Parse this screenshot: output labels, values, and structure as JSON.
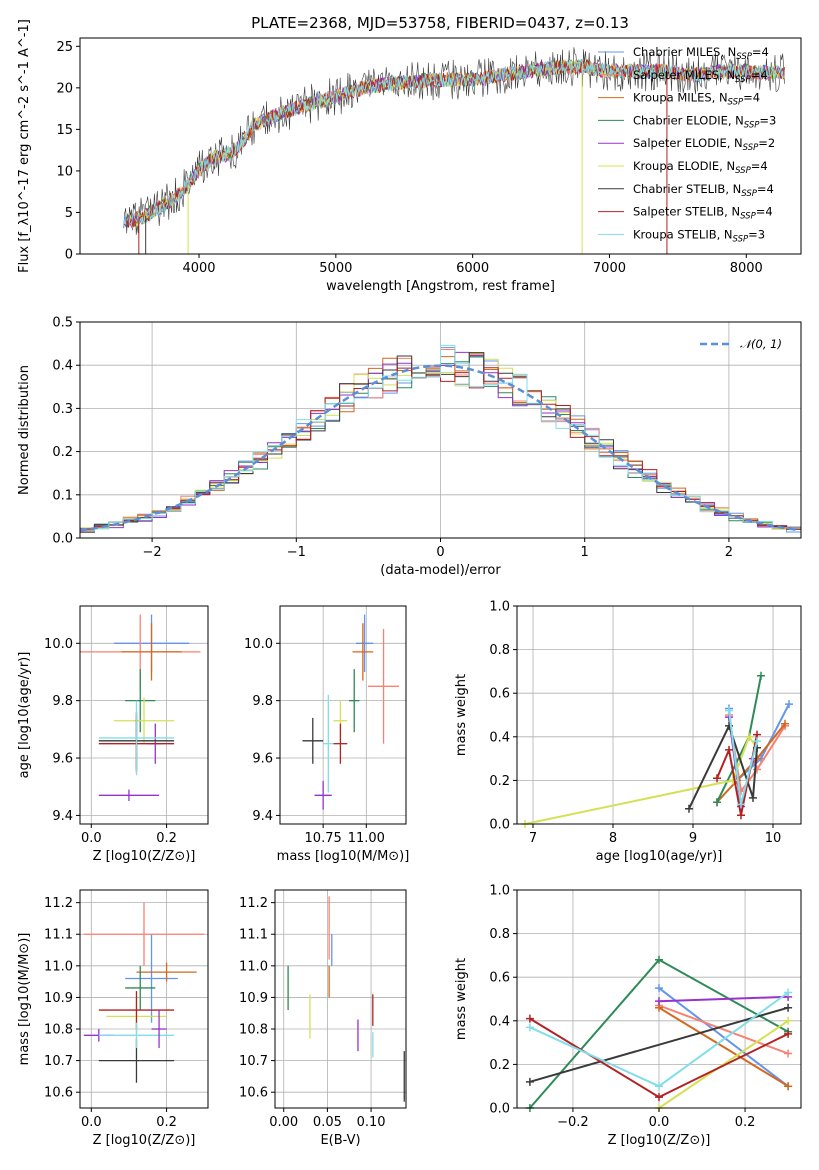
{
  "figure": {
    "title": "PLATE=2368, MJD=53758, FIBERID=0437, z=0.13"
  },
  "models": [
    {
      "name": "Chabrier MILES, N_SSP=4",
      "color": "#6495ED"
    },
    {
      "name": "Salpeter MILES, N_SSP=4",
      "color": "#FA8072"
    },
    {
      "name": "Kroupa MILES, N_SSP=4",
      "color": "#D2691E"
    },
    {
      "name": "Chabrier ELODIE, N_SSP=3",
      "color": "#2E8B57"
    },
    {
      "name": "Salpeter ELODIE, N_SSP=2",
      "color": "#9932CC"
    },
    {
      "name": "Kroupa ELODIE, N_SSP=4",
      "color": "#D4E157"
    },
    {
      "name": "Chabrier STELIB, N_SSP=4",
      "color": "#3a3a3a"
    },
    {
      "name": "Salpeter STELIB, N_SSP=4",
      "color": "#B22222"
    },
    {
      "name": "Kroupa STELIB, N_SSP=3",
      "color": "#80DEEA"
    }
  ],
  "chart_data": [
    {
      "id": "spectrum",
      "type": "line",
      "title": "PLATE=2368, MJD=53758, FIBERID=0437, z=0.13",
      "xlabel": "wavelength [Angstrom, rest frame]",
      "ylabel": "Flux [f_λ10^-17 erg cm^-2 s^-1 A^-1]",
      "xlim": [
        3130,
        8400
      ],
      "ylim": [
        0,
        26
      ],
      "xticks": [
        4000,
        5000,
        6000,
        7000,
        8000
      ],
      "yticks": [
        0,
        5,
        10,
        15,
        20,
        25
      ],
      "grid": false,
      "legend": "upper right",
      "continuum": {
        "x": [
          3500,
          3600,
          3700,
          3800,
          3900,
          4000,
          4100,
          4200,
          4300,
          4400,
          4600,
          4800,
          5000,
          5200,
          5400,
          5600,
          5800,
          6000,
          6200,
          6400,
          6600,
          6800,
          7000,
          7200,
          7400,
          7600,
          7800,
          8000,
          8200
        ],
        "y": [
          4,
          4.5,
          5.5,
          6.5,
          8,
          10,
          11.5,
          12,
          13,
          15.5,
          17,
          18,
          19,
          20,
          20.5,
          20.8,
          21,
          21,
          21.5,
          22,
          22.5,
          22.5,
          22,
          22,
          22,
          21.5,
          22,
          22,
          21.8
        ]
      }
    },
    {
      "id": "residuals",
      "type": "line",
      "xlabel": "(data-model)/error",
      "ylabel": "Normed distribution",
      "xlim": [
        -2.5,
        2.5
      ],
      "ylim": [
        0,
        0.5
      ],
      "xticks": [
        -2,
        -1,
        0,
        1,
        2
      ],
      "yticks": [
        0.0,
        0.1,
        0.2,
        0.3,
        0.4,
        0.5
      ],
      "grid": true,
      "legend": "upper right",
      "reference": {
        "name": "𝒩(0, 1)",
        "color": "#5B8FD9",
        "mean": 0,
        "sigma": 1,
        "peak": 0.399
      }
    },
    {
      "id": "age-vs-Z",
      "type": "scatter",
      "xlabel": "Z [log10(Z/Z⊙)]",
      "ylabel": "age [log10(age/yr)]",
      "xlim": [
        -0.03,
        0.31
      ],
      "ylim": [
        9.37,
        10.13
      ],
      "xticks": [
        0.0,
        0.2
      ],
      "yticks": [
        9.4,
        9.6,
        9.8,
        10.0
      ],
      "grid": true,
      "points": [
        {
          "model": 0,
          "x": 0.16,
          "xerr": 0.1,
          "y": 10.0,
          "yerr": 0.1
        },
        {
          "model": 1,
          "x": 0.13,
          "xerr": 0.16,
          "y": 9.97,
          "yerr": 0.13
        },
        {
          "model": 2,
          "x": 0.16,
          "xerr": 0.08,
          "y": 9.97,
          "yerr": 0.1
        },
        {
          "model": 3,
          "x": 0.13,
          "xerr": 0.04,
          "y": 9.8,
          "yerr": 0.11
        },
        {
          "model": 4,
          "x": 0.17,
          "xerr": 0.02,
          "y": 9.65,
          "yerr": 0.07
        },
        {
          "model": 5,
          "x": 0.14,
          "xerr": 0.08,
          "y": 9.73,
          "yerr": 0.08
        },
        {
          "model": 6,
          "x": 0.12,
          "xerr": 0.1,
          "y": 9.66,
          "yerr": 0.1
        },
        {
          "model": 7,
          "x": 0.12,
          "xerr": 0.1,
          "y": 9.65,
          "yerr": 0.1
        },
        {
          "model": 8,
          "x": 0.12,
          "xerr": 0.1,
          "y": 9.67,
          "yerr": 0.13
        },
        {
          "model": 4,
          "x": 0.1,
          "xerr": 0.08,
          "y": 9.47,
          "yerr": 0.02
        }
      ]
    },
    {
      "id": "age-vs-mass",
      "type": "scatter",
      "xlabel": "mass [log10(M/M⊙)]",
      "ylabel": "",
      "xlim": [
        10.5,
        11.23
      ],
      "ylim": [
        9.37,
        10.13
      ],
      "xticks": [
        10.75,
        11.0
      ],
      "yticks": [
        9.4,
        9.6,
        9.8,
        10.0
      ],
      "grid": true,
      "points": [
        {
          "model": 0,
          "x": 10.99,
          "xerr": 0.05,
          "y": 10.0,
          "yerr": 0.1
        },
        {
          "model": 1,
          "x": 11.1,
          "xerr": 0.09,
          "y": 9.85,
          "yerr": 0.2
        },
        {
          "model": 2,
          "x": 10.98,
          "xerr": 0.06,
          "y": 9.97,
          "yerr": 0.1
        },
        {
          "model": 3,
          "x": 10.93,
          "xerr": 0.03,
          "y": 9.8,
          "yerr": 0.11
        },
        {
          "model": 4,
          "x": 10.75,
          "xerr": 0.05,
          "y": 9.47,
          "yerr": 0.05
        },
        {
          "model": 5,
          "x": 10.85,
          "xerr": 0.04,
          "y": 9.73,
          "yerr": 0.07
        },
        {
          "model": 6,
          "x": 10.69,
          "xerr": 0.06,
          "y": 9.66,
          "yerr": 0.08
        },
        {
          "model": 7,
          "x": 10.85,
          "xerr": 0.04,
          "y": 9.65,
          "yerr": 0.07
        },
        {
          "model": 8,
          "x": 10.78,
          "xerr": 0.03,
          "y": 9.65,
          "yerr": 0.17
        }
      ]
    },
    {
      "id": "weight-vs-age",
      "type": "line",
      "xlabel": "age [log10(age/yr)]",
      "ylabel": "mass weight",
      "xlim": [
        6.8,
        10.35
      ],
      "ylim": [
        0,
        1.0
      ],
      "xticks": [
        7,
        8,
        9,
        10
      ],
      "yticks": [
        0.0,
        0.2,
        0.4,
        0.6,
        0.8,
        1.0
      ],
      "grid": true,
      "series": [
        {
          "model": 0,
          "x": [
            9.45,
            9.55,
            9.85,
            10.2
          ],
          "y": [
            0.53,
            0.2,
            0.3,
            0.55
          ]
        },
        {
          "model": 1,
          "x": [
            9.45,
            9.6,
            9.8,
            10.15
          ],
          "y": [
            0.5,
            0.15,
            0.25,
            0.45
          ]
        },
        {
          "model": 2,
          "x": [
            9.3,
            9.55,
            9.8,
            10.15
          ],
          "y": [
            0.1,
            0.2,
            0.3,
            0.46
          ]
        },
        {
          "model": 3,
          "x": [
            9.3,
            9.7,
            9.85
          ],
          "y": [
            0.1,
            0.4,
            0.68
          ]
        },
        {
          "model": 4,
          "x": [
            9.45,
            9.6,
            9.75
          ],
          "y": [
            0.49,
            0.08,
            0.3
          ]
        },
        {
          "model": 5,
          "x": [
            6.9,
            9.5,
            9.7,
            9.8
          ],
          "y": [
            0.0,
            0.2,
            0.4,
            0.35
          ]
        },
        {
          "model": 6,
          "x": [
            8.95,
            9.45,
            9.75,
            9.8
          ],
          "y": [
            0.07,
            0.45,
            0.12,
            0.35
          ]
        },
        {
          "model": 7,
          "x": [
            9.3,
            9.45,
            9.6,
            9.8
          ],
          "y": [
            0.21,
            0.34,
            0.04,
            0.41
          ]
        },
        {
          "model": 8,
          "x": [
            9.45,
            9.6,
            9.8
          ],
          "y": [
            0.52,
            0.09,
            0.38
          ]
        }
      ]
    },
    {
      "id": "mass-vs-Z",
      "type": "scatter",
      "xlabel": "Z [log10(Z/Z⊙)]",
      "ylabel": "mass [log10(M/M⊙)]",
      "xlim": [
        -0.03,
        0.31
      ],
      "ylim": [
        10.55,
        11.24
      ],
      "xticks": [
        0.0,
        0.2
      ],
      "yticks": [
        10.6,
        10.7,
        10.8,
        10.9,
        11.0,
        11.1,
        11.2
      ],
      "grid": true,
      "points": [
        {
          "model": 0,
          "x": 0.16,
          "xerr": 0.07,
          "y": 10.96,
          "yerr": 0.14
        },
        {
          "model": 1,
          "x": 0.14,
          "xerr": 0.16,
          "y": 11.1,
          "yerr": 0.1
        },
        {
          "model": 2,
          "x": 0.2,
          "xerr": 0.08,
          "y": 10.98,
          "yerr": 0.03
        },
        {
          "model": 3,
          "x": 0.13,
          "xerr": 0.04,
          "y": 10.93,
          "yerr": 0.07
        },
        {
          "model": 4,
          "x": 0.02,
          "xerr": 0.04,
          "y": 10.78,
          "yerr": 0.02
        },
        {
          "model": 5,
          "x": 0.12,
          "xerr": 0.08,
          "y": 10.84,
          "yerr": 0.06
        },
        {
          "model": 6,
          "x": 0.12,
          "xerr": 0.1,
          "y": 10.7,
          "yerr": 0.07
        },
        {
          "model": 7,
          "x": 0.12,
          "xerr": 0.1,
          "y": 10.86,
          "yerr": 0.06
        },
        {
          "model": 8,
          "x": 0.12,
          "xerr": 0.1,
          "y": 10.78,
          "yerr": 0.04
        },
        {
          "model": 4,
          "x": 0.18,
          "xerr": 0.02,
          "y": 10.8,
          "yerr": 0.06
        }
      ]
    },
    {
      "id": "mass-vs-ebv",
      "type": "scatter",
      "xlabel": "E(B-V)",
      "ylabel": "",
      "xlim": [
        -0.01,
        0.14
      ],
      "ylim": [
        10.55,
        11.24
      ],
      "xticks": [
        0.0,
        0.05,
        0.1
      ],
      "yticks": [
        10.6,
        10.7,
        10.8,
        10.9,
        11.0,
        11.1,
        11.2
      ],
      "grid": true,
      "points": [
        {
          "model": 0,
          "x": 0.055,
          "y": 11.05,
          "yerr": 0.05
        },
        {
          "model": 1,
          "x": 0.052,
          "y": 11.12,
          "yerr": 0.1
        },
        {
          "model": 2,
          "x": 0.052,
          "y": 10.95,
          "yerr": 0.05
        },
        {
          "model": 3,
          "x": 0.005,
          "y": 10.93,
          "yerr": 0.07
        },
        {
          "model": 4,
          "x": 0.085,
          "y": 10.78,
          "yerr": 0.05
        },
        {
          "model": 5,
          "x": 0.03,
          "y": 10.84,
          "yerr": 0.07
        },
        {
          "model": 6,
          "x": 0.138,
          "y": 10.65,
          "yerr": 0.08
        },
        {
          "model": 7,
          "x": 0.102,
          "y": 10.86,
          "yerr": 0.05
        },
        {
          "model": 8,
          "x": 0.102,
          "y": 10.75,
          "yerr": 0.04
        }
      ]
    },
    {
      "id": "weight-vs-Z",
      "type": "line",
      "xlabel": "Z [log10(Z/Z⊙)]",
      "ylabel": "mass weight",
      "xlim": [
        -0.33,
        0.33
      ],
      "ylim": [
        0,
        1.0
      ],
      "xticks": [
        -0.2,
        0.0,
        0.2
      ],
      "yticks": [
        0.0,
        0.2,
        0.4,
        0.6,
        0.8,
        1.0
      ],
      "grid": true,
      "series": [
        {
          "model": 0,
          "x": [
            0.0,
            0.3
          ],
          "y": [
            0.55,
            0.1
          ]
        },
        {
          "model": 1,
          "x": [
            0.0,
            0.3
          ],
          "y": [
            0.47,
            0.25
          ]
        },
        {
          "model": 2,
          "x": [
            0.0,
            0.3
          ],
          "y": [
            0.46,
            0.1
          ]
        },
        {
          "model": 3,
          "x": [
            -0.3,
            0.0,
            0.3
          ],
          "y": [
            0.0,
            0.68,
            0.35
          ]
        },
        {
          "model": 4,
          "x": [
            0.0,
            0.3
          ],
          "y": [
            0.49,
            0.51
          ]
        },
        {
          "model": 5,
          "x": [
            0.0,
            0.3
          ],
          "y": [
            0.0,
            0.4
          ]
        },
        {
          "model": 6,
          "x": [
            -0.3,
            0.3
          ],
          "y": [
            0.12,
            0.46
          ]
        },
        {
          "model": 7,
          "x": [
            -0.3,
            0.0,
            0.3
          ],
          "y": [
            0.41,
            0.05,
            0.34
          ]
        },
        {
          "model": 8,
          "x": [
            -0.3,
            0.0,
            0.3
          ],
          "y": [
            0.37,
            0.1,
            0.53
          ]
        }
      ]
    }
  ]
}
